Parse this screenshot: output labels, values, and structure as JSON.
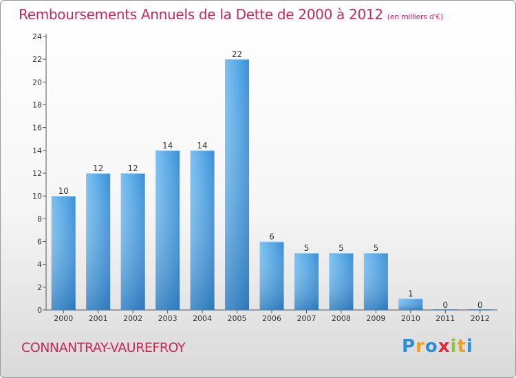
{
  "chart_data": {
    "type": "bar",
    "title": "Remboursements Annuels de la Dette de 2000 à 2012",
    "unit_note": "(en milliers d'€)",
    "categories": [
      "2000",
      "2001",
      "2002",
      "2003",
      "2004",
      "2005",
      "2006",
      "2007",
      "2008",
      "2009",
      "2010",
      "2011",
      "2012"
    ],
    "values": [
      10,
      12,
      12,
      14,
      14,
      22,
      6,
      5,
      5,
      5,
      1,
      0,
      0
    ],
    "yticks": [
      0,
      2,
      4,
      6,
      8,
      10,
      12,
      14,
      16,
      18,
      20,
      22,
      24
    ],
    "ylim": [
      0,
      24
    ],
    "xlabel": "",
    "ylabel": "",
    "grid": false,
    "bar_color": "#4a9fe0"
  },
  "footer": {
    "commune": "CONNANTRAY-VAUREFROY",
    "logo_letters": [
      {
        "ch": "P",
        "color": "#2c8fd6"
      },
      {
        "ch": "r",
        "color": "#f0a020"
      },
      {
        "ch": "o",
        "color": "#2c8fd6"
      },
      {
        "ch": "x",
        "color": "#e2283c"
      },
      {
        "ch": "i",
        "color": "#8cc640"
      },
      {
        "ch": "t",
        "color": "#f0a020"
      },
      {
        "ch": "i",
        "color": "#2c8fd6"
      }
    ]
  }
}
